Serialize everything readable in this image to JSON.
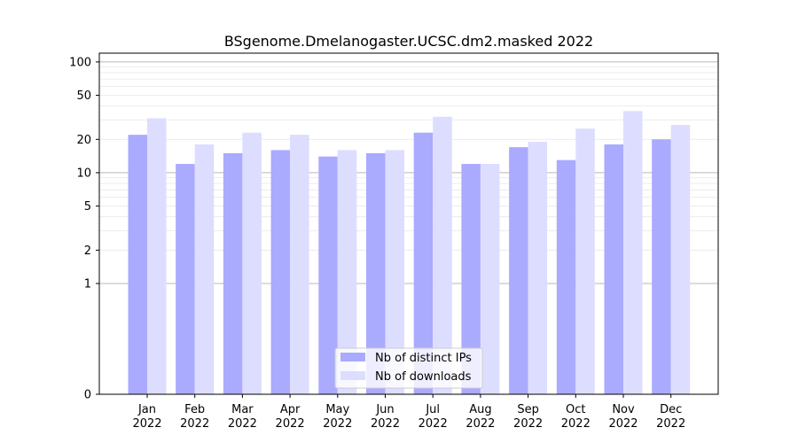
{
  "chart_data": {
    "type": "bar",
    "title": "BSgenome.Dmelanogaster.UCSC.dm2.masked 2022",
    "categories": [
      "Jan 2022",
      "Feb 2022",
      "Mar 2022",
      "Apr 2022",
      "May 2022",
      "Jun 2022",
      "Jul 2022",
      "Aug 2022",
      "Sep 2022",
      "Oct 2022",
      "Nov 2022",
      "Dec 2022"
    ],
    "category_lines": [
      [
        "Jan",
        "2022"
      ],
      [
        "Feb",
        "2022"
      ],
      [
        "Mar",
        "2022"
      ],
      [
        "Apr",
        "2022"
      ],
      [
        "May",
        "2022"
      ],
      [
        "Jun",
        "2022"
      ],
      [
        "Jul",
        "2022"
      ],
      [
        "Aug",
        "2022"
      ],
      [
        "Sep",
        "2022"
      ],
      [
        "Oct",
        "2022"
      ],
      [
        "Nov",
        "2022"
      ],
      [
        "Dec",
        "2022"
      ]
    ],
    "series": [
      {
        "name": "Nb of distinct IPs",
        "color": "#aaaaff",
        "values": [
          22,
          12,
          15,
          16,
          14,
          15,
          23,
          12,
          17,
          13,
          18,
          20
        ]
      },
      {
        "name": "Nb of downloads",
        "color": "#ddddff",
        "values": [
          31,
          18,
          23,
          22,
          16,
          16,
          32,
          12,
          19,
          25,
          36,
          27
        ]
      }
    ],
    "yscale": "symlog",
    "ylim": [
      0,
      120
    ],
    "yticks": [
      0,
      1,
      2,
      5,
      10,
      20,
      50,
      100
    ],
    "ytick_labels": [
      "0",
      "1",
      "2",
      "5",
      "10",
      "20",
      "50",
      "100"
    ],
    "xlabel": "",
    "ylabel": "",
    "grid": true,
    "legend_position": "lower center"
  }
}
